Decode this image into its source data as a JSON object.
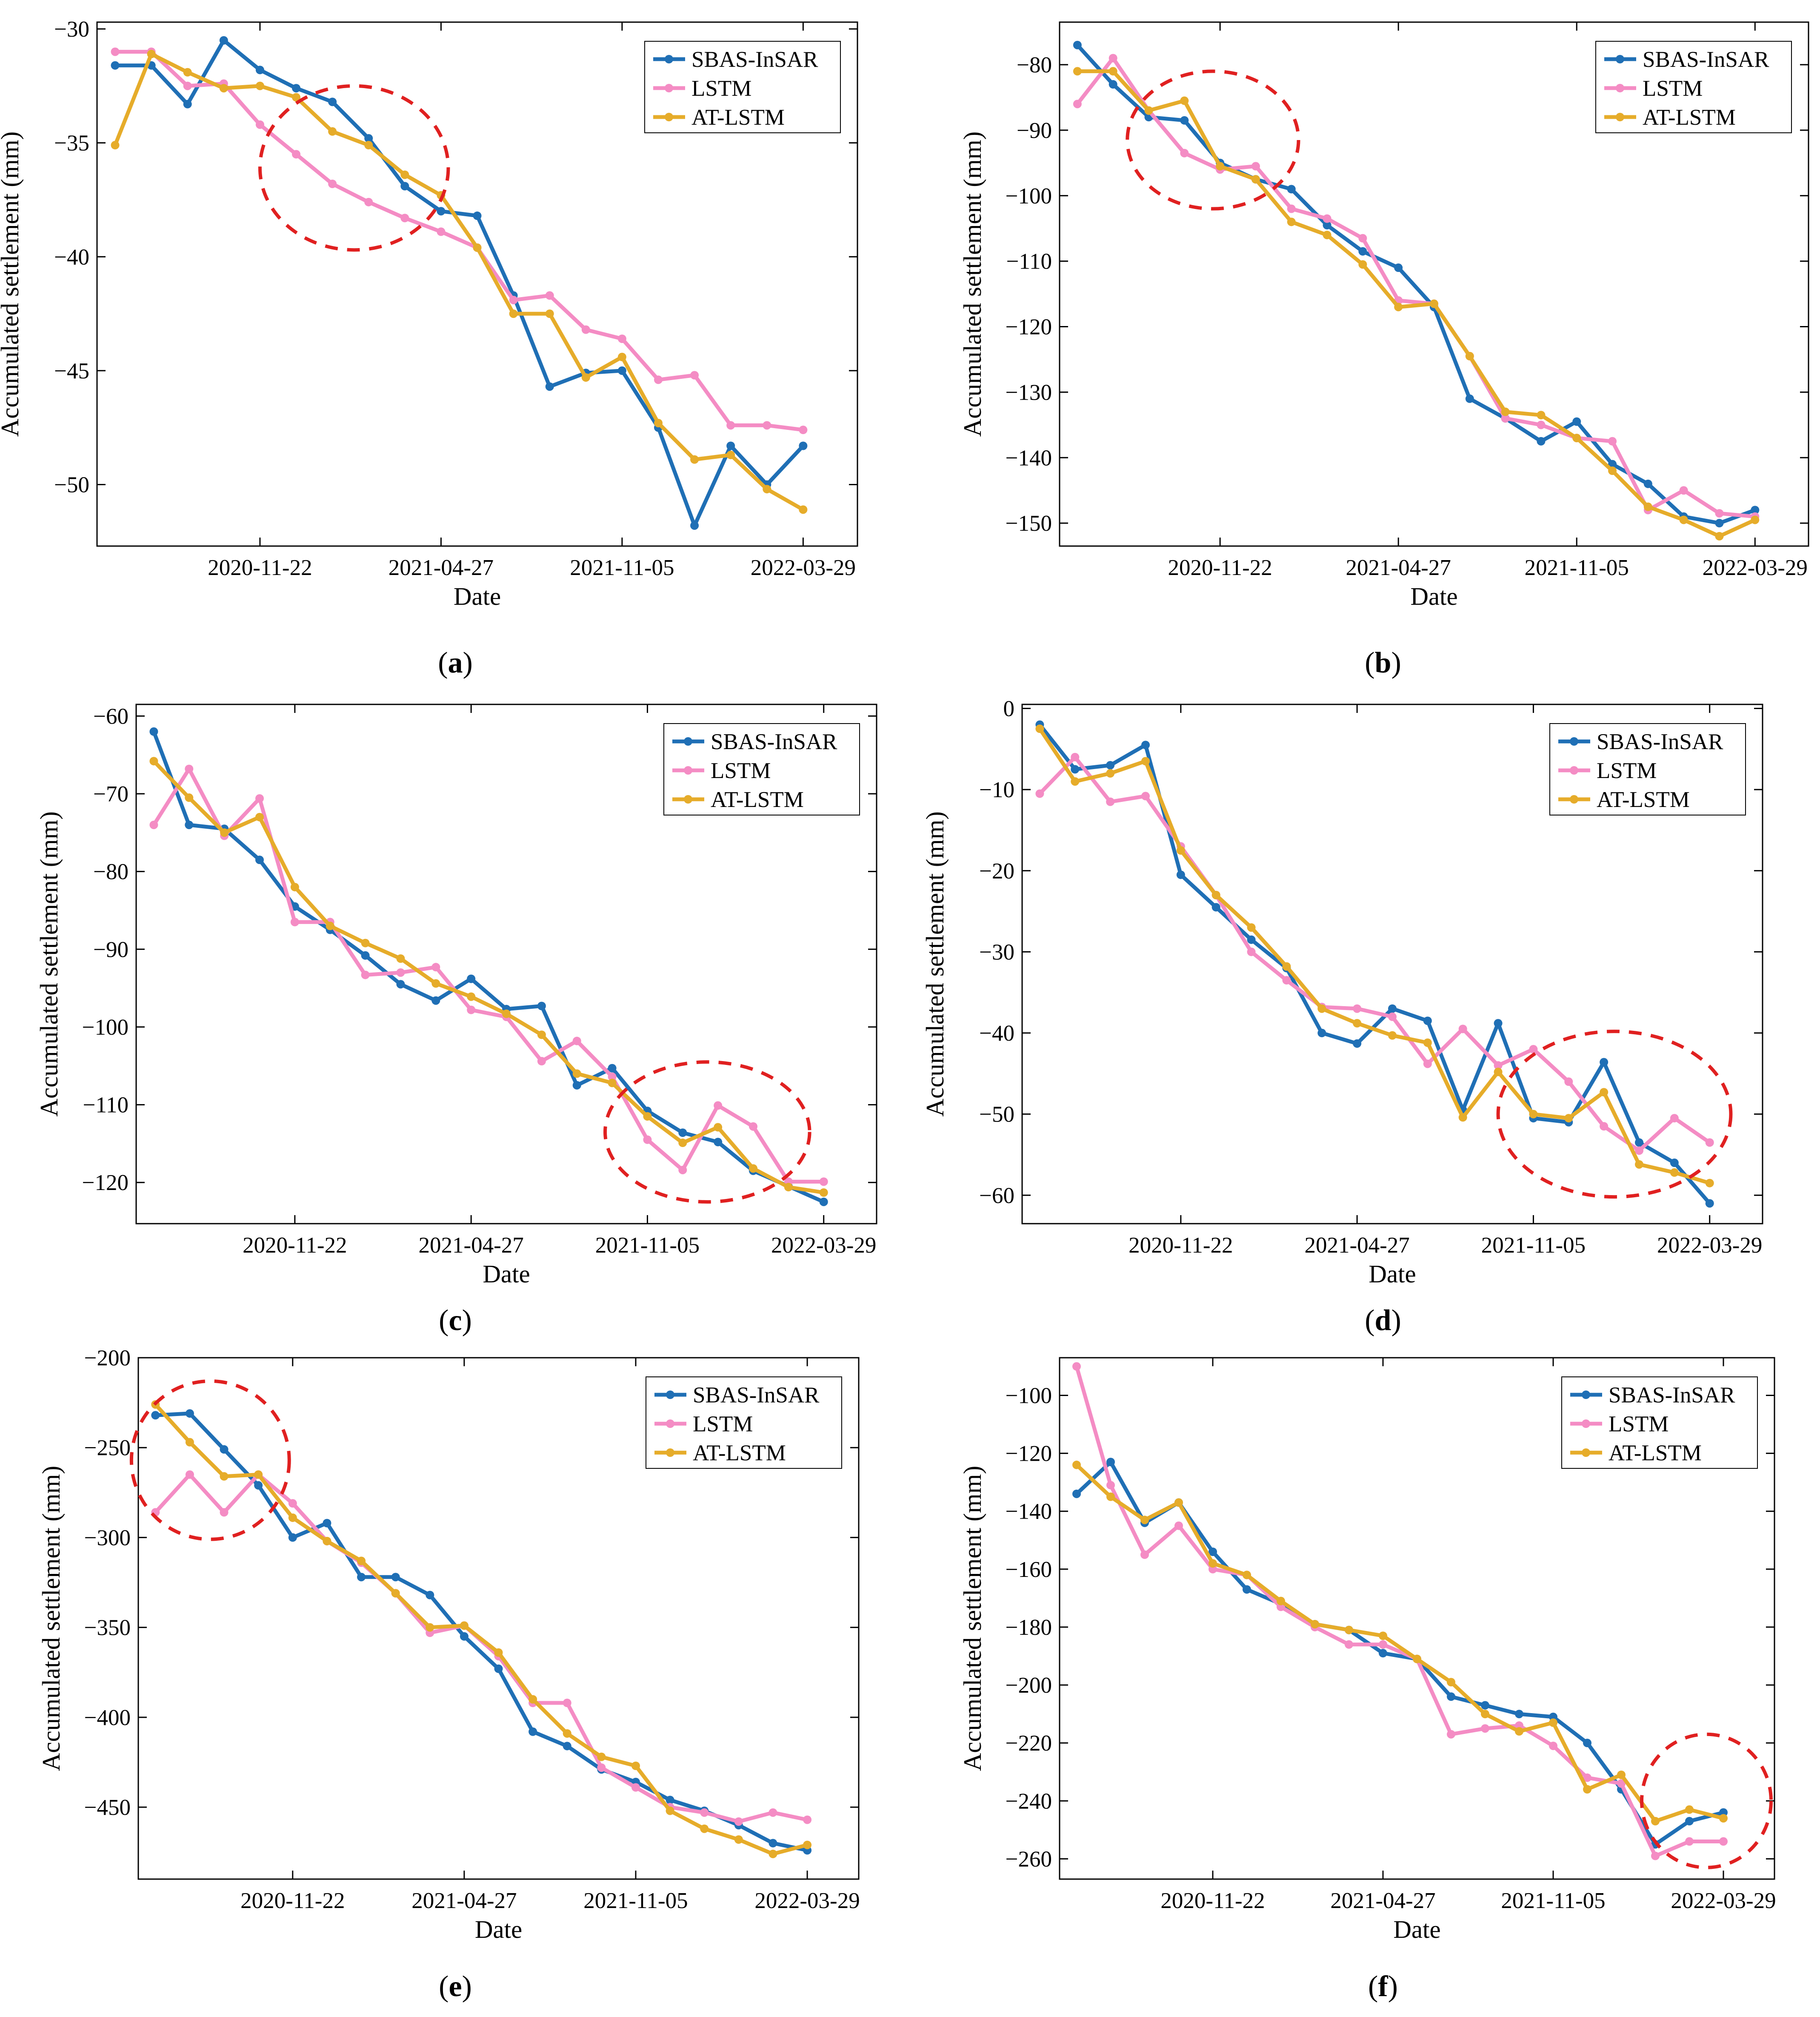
{
  "colors": {
    "sbas": "#1f6fb5",
    "lstm": "#f48cc4",
    "atlstm": "#e6ac2a",
    "circle": "#e02020"
  },
  "legend": [
    "SBAS-InSAR",
    "LSTM",
    "AT-LSTM"
  ],
  "chart_data": [
    {
      "type": "line",
      "panel_label": "a",
      "ylabel": "Accumulated settlement (mm)",
      "xlabel": "Date",
      "x_ticks": [
        "2020-11-22",
        "2021-04-27",
        "2021-11-05",
        "2022-03-29"
      ],
      "x_tick_index": [
        4,
        9,
        14,
        19
      ],
      "xlim": [
        -0.5,
        20.5
      ],
      "ylim": [
        -52.7,
        -29.7
      ],
      "y_ticks": [
        -30,
        -35,
        -40,
        -45,
        -50
      ],
      "series": [
        {
          "name": "SBAS-InSAR",
          "values": [
            -31.6,
            -31.6,
            -33.3,
            -30.5,
            -31.8,
            -32.6,
            -33.2,
            -34.8,
            -36.9,
            -38.0,
            -38.2,
            -41.7,
            -45.7,
            -45.1,
            -45.0,
            -47.5,
            -51.8,
            -48.3,
            -50.0,
            -48.3
          ]
        },
        {
          "name": "LSTM",
          "values": [
            -31.0,
            -31.0,
            -32.5,
            -32.4,
            -34.2,
            -35.5,
            -36.8,
            -37.6,
            -38.3,
            -38.9,
            -39.6,
            -41.9,
            -41.7,
            -43.2,
            -43.6,
            -45.4,
            -45.2,
            -47.4,
            -47.4,
            -47.6
          ]
        },
        {
          "name": "AT-LSTM",
          "values": [
            -35.1,
            -31.1,
            -31.9,
            -32.6,
            -32.5,
            -33.0,
            -34.5,
            -35.1,
            -36.4,
            -37.3,
            -39.6,
            -42.5,
            -42.5,
            -45.3,
            -44.4,
            -47.3,
            -48.9,
            -48.7,
            -50.2,
            -51.1
          ]
        }
      ],
      "highlight": {
        "cx": 6.6,
        "cy": -36.1,
        "rx": 2.6,
        "ry": 3.6
      }
    },
    {
      "type": "line",
      "panel_label": "b",
      "ylabel": "Accumulated settlement (mm)",
      "xlabel": "Date",
      "x_ticks": [
        "2020-11-22",
        "2021-04-27",
        "2021-11-05",
        "2022-03-29"
      ],
      "x_tick_index": [
        4,
        9,
        14,
        19
      ],
      "xlim": [
        -0.5,
        20.5
      ],
      "ylim": [
        -153.5,
        -73.5
      ],
      "y_ticks": [
        -80,
        -90,
        -100,
        -110,
        -120,
        -130,
        -140,
        -150
      ],
      "series": [
        {
          "name": "SBAS-InSAR",
          "values": [
            -77.0,
            -83.0,
            -88.0,
            -88.5,
            -95.0,
            -97.5,
            -99.0,
            -104.5,
            -108.5,
            -111.0,
            -117.0,
            -131.0,
            -134.0,
            -137.5,
            -134.5,
            -141.0,
            -144.0,
            -149.0,
            -150.0,
            -148.0
          ]
        },
        {
          "name": "LSTM",
          "values": [
            -86.0,
            -79.0,
            -87.0,
            -93.5,
            -96.0,
            -95.5,
            -102.0,
            -103.5,
            -106.5,
            -116.0,
            -116.5,
            -124.5,
            -134.0,
            -135.0,
            -137.0,
            -137.5,
            -148.0,
            -145.0,
            -148.5,
            -149.0
          ]
        },
        {
          "name": "AT-LSTM",
          "values": [
            -81.0,
            -81.0,
            -87.0,
            -85.5,
            -95.5,
            -97.5,
            -104.0,
            -106.0,
            -110.5,
            -117.0,
            -116.5,
            -124.5,
            -133.0,
            -133.5,
            -137.0,
            -142.0,
            -147.5,
            -149.5,
            -152.0,
            -149.5
          ]
        }
      ],
      "highlight": {
        "cx": 3.8,
        "cy": -91.5,
        "rx": 2.4,
        "ry": 10.5
      }
    },
    {
      "type": "line",
      "panel_label": "c",
      "ylabel": "Accumulated settlement (mm)",
      "xlabel": "Date",
      "x_ticks": [
        "2020-11-22",
        "2021-04-27",
        "2021-11-05",
        "2022-03-29"
      ],
      "x_tick_index": [
        4,
        9,
        14,
        19
      ],
      "xlim": [
        -0.5,
        20.5
      ],
      "ylim": [
        -125.3,
        -58.5
      ],
      "y_ticks": [
        -60,
        -70,
        -80,
        -90,
        -100,
        -110,
        -120
      ],
      "series": [
        {
          "name": "SBAS-InSAR",
          "values": [
            -62.0,
            -74.0,
            -74.5,
            -78.5,
            -84.5,
            -87.5,
            -90.8,
            -94.5,
            -96.6,
            -93.8,
            -97.7,
            -97.3,
            -107.5,
            -105.3,
            -110.8,
            -113.6,
            -114.8,
            -118.5,
            -120.5,
            -122.5
          ]
        },
        {
          "name": "LSTM",
          "values": [
            -74.0,
            -66.8,
            -75.4,
            -70.6,
            -86.5,
            -86.5,
            -93.3,
            -93.0,
            -92.3,
            -97.8,
            -98.7,
            -104.4,
            -101.8,
            -106.4,
            -114.5,
            -118.4,
            -110.1,
            -112.8,
            -119.9,
            -119.9
          ]
        },
        {
          "name": "AT-LSTM",
          "values": [
            -65.8,
            -70.5,
            -75.0,
            -73.0,
            -82.0,
            -87.0,
            -89.2,
            -91.2,
            -94.4,
            -96.1,
            -98.3,
            -101.0,
            -106.0,
            -107.2,
            -111.5,
            -114.9,
            -112.9,
            -118.2,
            -120.6,
            -121.3
          ]
        }
      ],
      "highlight": {
        "cx": 15.7,
        "cy": -113.5,
        "rx": 2.9,
        "ry": 9.0
      }
    },
    {
      "type": "line",
      "panel_label": "d",
      "ylabel": "Accumulated settlement (mm)",
      "xlabel": "Date",
      "x_ticks": [
        "2020-11-22",
        "2021-04-27",
        "2021-11-05",
        "2022-03-29"
      ],
      "x_tick_index": [
        4,
        9,
        14,
        19
      ],
      "xlim": [
        -0.5,
        20.5
      ],
      "ylim": [
        -63.5,
        0.5
      ],
      "y_ticks": [
        0,
        -10,
        -20,
        -30,
        -40,
        -50,
        -60
      ],
      "series": [
        {
          "name": "SBAS-InSAR",
          "values": [
            -2.0,
            -7.5,
            -7.0,
            -4.5,
            -20.5,
            -24.5,
            -28.5,
            -32.0,
            -40.0,
            -41.3,
            -37.0,
            -38.5,
            -49.5,
            -38.8,
            -50.5,
            -51.0,
            -43.6,
            -53.5,
            -56.0,
            -61.0
          ]
        },
        {
          "name": "LSTM",
          "values": [
            -10.5,
            -6.0,
            -11.5,
            -10.8,
            -17.0,
            -23.0,
            -30.0,
            -33.5,
            -36.8,
            -37.0,
            -38.0,
            -43.8,
            -39.5,
            -44.0,
            -42.0,
            -46.0,
            -51.5,
            -54.5,
            -50.5,
            -53.5
          ]
        },
        {
          "name": "AT-LSTM",
          "values": [
            -2.5,
            -9.0,
            -8.0,
            -6.5,
            -17.5,
            -23.0,
            -27.0,
            -31.8,
            -37.0,
            -38.8,
            -40.3,
            -41.2,
            -50.4,
            -44.8,
            -50.0,
            -50.5,
            -47.3,
            -56.2,
            -57.2,
            -58.5
          ]
        }
      ],
      "highlight": {
        "cx": 16.3,
        "cy": -50.0,
        "rx": 3.3,
        "ry": 10.2
      }
    },
    {
      "type": "line",
      "panel_label": "e",
      "ylabel": "Accumulated settlement (mm)",
      "xlabel": "Date",
      "x_ticks": [
        "2020-11-22",
        "2021-04-27",
        "2021-11-05",
        "2022-03-29"
      ],
      "x_tick_index": [
        4,
        9,
        14,
        19
      ],
      "xlim": [
        -0.5,
        20.5
      ],
      "ylim": [
        -490,
        -200
      ],
      "y_ticks": [
        -200,
        -250,
        -300,
        -350,
        -400,
        -450
      ],
      "series": [
        {
          "name": "SBAS-InSAR",
          "values": [
            -232,
            -231,
            -251,
            -271,
            -300,
            -292,
            -322,
            -322,
            -332,
            -355,
            -373,
            -408,
            -416,
            -429,
            -436,
            -446,
            -452,
            -460,
            -470,
            -474
          ]
        },
        {
          "name": "LSTM",
          "values": [
            -286,
            -265,
            -286,
            -265,
            -281,
            -302,
            -314,
            -331,
            -353,
            -349,
            -366,
            -392,
            -392,
            -428,
            -439,
            -450,
            -453,
            -458,
            -453,
            -457
          ]
        },
        {
          "name": "AT-LSTM",
          "values": [
            -226,
            -247,
            -266,
            -265,
            -289,
            -302,
            -313,
            -331,
            -350,
            -349,
            -364,
            -390,
            -409,
            -422,
            -427,
            -452,
            -462,
            -468,
            -476,
            -471
          ]
        }
      ],
      "highlight": {
        "cx": 1.6,
        "cy": -257,
        "rx": 2.3,
        "ry": 44
      }
    },
    {
      "type": "line",
      "panel_label": "f",
      "ylabel": "Accumulated settlement (mm)",
      "xlabel": "Date",
      "x_ticks": [
        "2020-11-22",
        "2021-04-27",
        "2021-11-05",
        "2022-03-29"
      ],
      "x_tick_index": [
        4,
        9,
        14,
        19
      ],
      "xlim": [
        -0.5,
        20.5
      ],
      "ylim": [
        -267,
        -87
      ],
      "y_ticks": [
        -100,
        -120,
        -140,
        -160,
        -180,
        -200,
        -220,
        -240,
        -260
      ],
      "series": [
        {
          "name": "SBAS-InSAR",
          "values": [
            -134,
            -123,
            -144,
            -137,
            -154,
            -167,
            -172,
            -179,
            -181,
            -189,
            -191,
            -204,
            -207,
            -210,
            -211,
            -220,
            -236,
            -255,
            -247,
            -244
          ]
        },
        {
          "name": "LSTM",
          "values": [
            -90,
            -131,
            -155,
            -145,
            -160,
            -162,
            -173,
            -180,
            -186,
            -186,
            -191,
            -217,
            -215,
            -214,
            -221,
            -232,
            -234,
            -259,
            -254,
            -254
          ]
        },
        {
          "name": "AT-LSTM",
          "values": [
            -124,
            -135,
            -143,
            -137,
            -158,
            -162,
            -171,
            -179,
            -181,
            -183,
            -191,
            -199,
            -210,
            -216,
            -213,
            -236,
            -231,
            -247,
            -243,
            -246
          ]
        }
      ],
      "highlight": {
        "cx": 18.5,
        "cy": -240,
        "rx": 1.9,
        "ry": 23
      }
    }
  ]
}
